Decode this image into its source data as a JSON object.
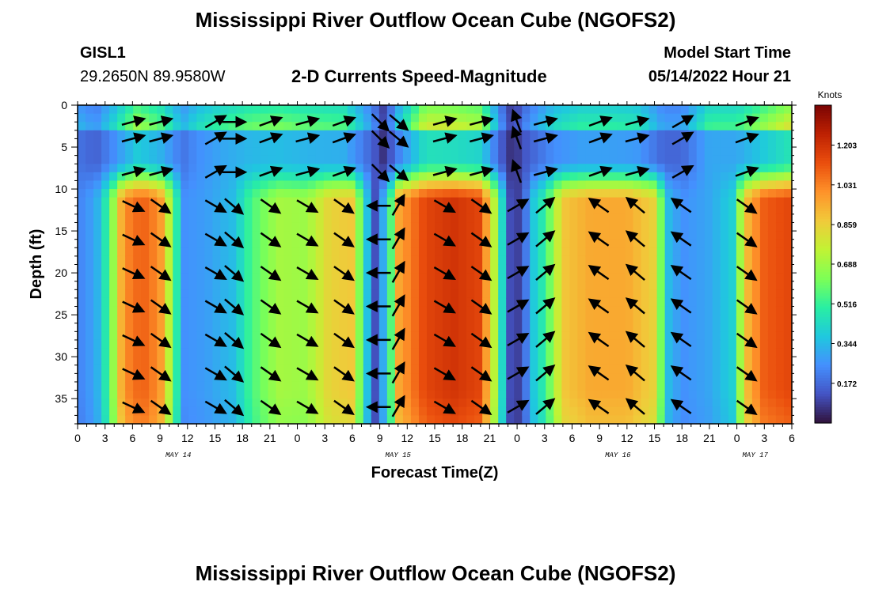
{
  "title": "Mississippi River Outflow Ocean Cube (NGOFS2)",
  "title_repeat": "Mississippi River Outflow Ocean Cube (NGOFS2)",
  "station": {
    "id": "GISL1",
    "coords": "29.2650N  89.9580W"
  },
  "model": {
    "label": "Model Start Time",
    "time": "05/14/2022 Hour 21"
  },
  "chart_data": {
    "type": "heatmap",
    "title": "2-D Currents Speed-Magnitude",
    "xlabel": "Forecast Time(Z)",
    "ylabel": "Depth (ft)",
    "x_hours_range": [
      0,
      78
    ],
    "ylim": [
      0,
      38
    ],
    "x_tick_labels": [
      "0",
      "3",
      "6",
      "9",
      "12",
      "15",
      "18",
      "21",
      "0",
      "3",
      "6",
      "9",
      "12",
      "15",
      "18",
      "21",
      "0",
      "3",
      "6",
      "9",
      "12",
      "15",
      "18",
      "21",
      "0",
      "3",
      "6"
    ],
    "y_ticks": [
      0,
      5,
      10,
      15,
      20,
      25,
      30,
      35
    ],
    "date_labels": [
      {
        "label": "MAY 14",
        "hour": 11
      },
      {
        "label": "MAY 15",
        "hour": 35
      },
      {
        "label": "MAY 16",
        "hour": 59
      },
      {
        "label": "MAY 17",
        "hour": 74
      }
    ],
    "colorbar": {
      "title": "Knots",
      "min": 0.0,
      "max": 1.376,
      "ticks": [
        "1.203",
        "1.031",
        "0.859",
        "0.688",
        "0.516",
        "0.344",
        "0.172"
      ],
      "tick_values": [
        1.203,
        1.031,
        0.859,
        0.688,
        0.516,
        0.344,
        0.172
      ],
      "colors": [
        "#30123b",
        "#4454c4",
        "#4490fe",
        "#1fc8de",
        "#29efa2",
        "#7dff56",
        "#c1f334",
        "#f1ca3a",
        "#fe922a",
        "#ea4e0d",
        "#be2102",
        "#7a0403"
      ]
    },
    "surface_speed_profile": [
      {
        "h": 0,
        "v": 0.35
      },
      {
        "h": 2,
        "v": 0.28
      },
      {
        "h": 4,
        "v": 0.45
      },
      {
        "h": 6.5,
        "v": 0.7
      },
      {
        "h": 9,
        "v": 0.6
      },
      {
        "h": 11.5,
        "v": 0.35
      },
      {
        "h": 13,
        "v": 0.45
      },
      {
        "h": 16,
        "v": 0.55
      },
      {
        "h": 19,
        "v": 0.62
      },
      {
        "h": 22,
        "v": 0.64
      },
      {
        "h": 25,
        "v": 0.6
      },
      {
        "h": 29,
        "v": 0.58
      },
      {
        "h": 32,
        "v": 0.3
      },
      {
        "h": 33.5,
        "v": 0.1
      },
      {
        "h": 35,
        "v": 0.4
      },
      {
        "h": 38,
        "v": 0.82
      },
      {
        "h": 41,
        "v": 0.8
      },
      {
        "h": 44,
        "v": 0.75
      },
      {
        "h": 46,
        "v": 0.3
      },
      {
        "h": 47.5,
        "v": 0.08
      },
      {
        "h": 49,
        "v": 0.25
      },
      {
        "h": 52,
        "v": 0.45
      },
      {
        "h": 55,
        "v": 0.52
      },
      {
        "h": 58,
        "v": 0.52
      },
      {
        "h": 61,
        "v": 0.5
      },
      {
        "h": 64,
        "v": 0.3
      },
      {
        "h": 66,
        "v": 0.3
      },
      {
        "h": 69,
        "v": 0.55
      },
      {
        "h": 72,
        "v": 0.55
      },
      {
        "h": 75,
        "v": 0.7
      },
      {
        "h": 78,
        "v": 0.85
      }
    ],
    "deep_speed_profile": [
      {
        "h": 0,
        "v": 0.22
      },
      {
        "h": 2,
        "v": 0.3
      },
      {
        "h": 3.5,
        "v": 0.55
      },
      {
        "h": 5,
        "v": 1.0
      },
      {
        "h": 7,
        "v": 1.1
      },
      {
        "h": 9,
        "v": 1.0
      },
      {
        "h": 10.5,
        "v": 0.6
      },
      {
        "h": 11.5,
        "v": 0.25
      },
      {
        "h": 14,
        "v": 0.28
      },
      {
        "h": 17,
        "v": 0.35
      },
      {
        "h": 19,
        "v": 0.55
      },
      {
        "h": 22,
        "v": 0.7
      },
      {
        "h": 25,
        "v": 0.68
      },
      {
        "h": 27.5,
        "v": 0.85
      },
      {
        "h": 30,
        "v": 0.88
      },
      {
        "h": 31.5,
        "v": 0.4
      },
      {
        "h": 32.5,
        "v": 0.12
      },
      {
        "h": 34,
        "v": 0.45
      },
      {
        "h": 35,
        "v": 0.95
      },
      {
        "h": 38,
        "v": 1.15
      },
      {
        "h": 41,
        "v": 1.2
      },
      {
        "h": 44,
        "v": 1.15
      },
      {
        "h": 46,
        "v": 0.6
      },
      {
        "h": 47,
        "v": 0.12
      },
      {
        "h": 48.5,
        "v": 0.08
      },
      {
        "h": 49.5,
        "v": 0.35
      },
      {
        "h": 51,
        "v": 0.5
      },
      {
        "h": 53,
        "v": 0.88
      },
      {
        "h": 56,
        "v": 0.95
      },
      {
        "h": 60,
        "v": 0.95
      },
      {
        "h": 63,
        "v": 0.85
      },
      {
        "h": 64.5,
        "v": 0.35
      },
      {
        "h": 66,
        "v": 0.25
      },
      {
        "h": 69,
        "v": 0.3
      },
      {
        "h": 71.5,
        "v": 0.4
      },
      {
        "h": 73,
        "v": 0.9
      },
      {
        "h": 75,
        "v": 1.1
      },
      {
        "h": 78,
        "v": 1.15
      }
    ],
    "vector_columns": [
      {
        "h": 6,
        "deep": -25,
        "surf": 15
      },
      {
        "h": 9,
        "deep": -35,
        "surf": 15
      },
      {
        "h": 15,
        "deep": -30,
        "surf": 30
      },
      {
        "h": 17,
        "deep": -40,
        "surf": 0
      },
      {
        "h": 21,
        "deep": -35,
        "surf": 20
      },
      {
        "h": 25,
        "deep": -30,
        "surf": 15
      },
      {
        "h": 29,
        "deep": -35,
        "surf": 20
      },
      {
        "h": 33,
        "deep": 180,
        "surf": -45
      },
      {
        "h": 35,
        "deep": 60,
        "surf": -40
      },
      {
        "h": 40,
        "deep": -30,
        "surf": 15
      },
      {
        "h": 44,
        "deep": -35,
        "surf": 15
      },
      {
        "h": 48,
        "deep": 30,
        "surf": 110
      },
      {
        "h": 51,
        "deep": 40,
        "surf": 15
      },
      {
        "h": 57,
        "deep": 145,
        "surf": 20
      },
      {
        "h": 61,
        "deep": 140,
        "surf": 15
      },
      {
        "h": 66,
        "deep": 145,
        "surf": 30
      },
      {
        "h": 73,
        "deep": -35,
        "surf": 20
      }
    ],
    "vector_depths": [
      2,
      4,
      8,
      12,
      16,
      20,
      24,
      28,
      32,
      36
    ]
  }
}
